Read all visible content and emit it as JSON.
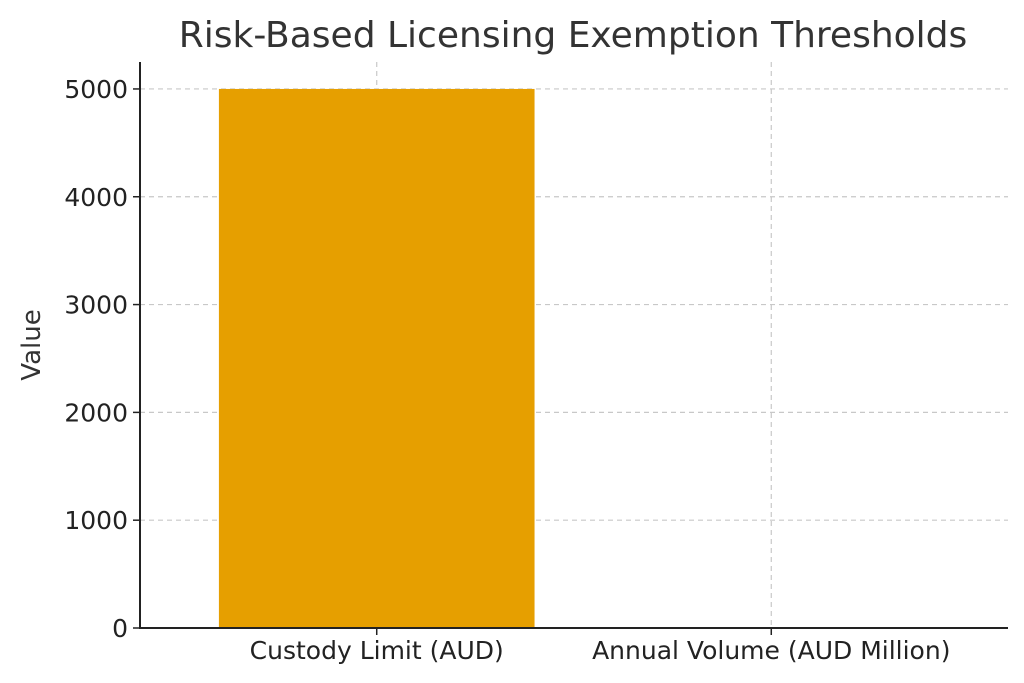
{
  "chart_data": {
    "type": "bar",
    "title": "Risk-Based Licensing Exemption Thresholds",
    "xlabel": "",
    "ylabel": "Value",
    "categories": [
      "Custody Limit (AUD)",
      "Annual Volume (AUD Million)"
    ],
    "values": [
      5000,
      1.5
    ],
    "ylim": [
      0,
      5250
    ],
    "yticks": [
      0,
      1000,
      2000,
      3000,
      4000,
      5000
    ],
    "bar_color": "#E69F00",
    "grid": true,
    "legend": "none"
  }
}
